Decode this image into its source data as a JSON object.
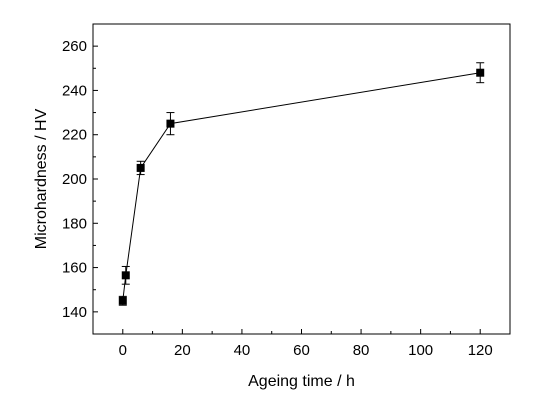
{
  "chart_data": {
    "type": "line",
    "xlabel": "Ageing time / h",
    "ylabel": "Microhardness / HV",
    "xlim": [
      -10,
      130
    ],
    "ylim": [
      130,
      270
    ],
    "xticks": [
      0,
      20,
      40,
      60,
      80,
      100,
      120
    ],
    "yticks": [
      140,
      160,
      180,
      200,
      220,
      240,
      260
    ],
    "grid": false,
    "series": [
      {
        "marker": "square",
        "color": "#000000",
        "points": [
          {
            "x": 0,
            "y": 145,
            "err": 2
          },
          {
            "x": 1,
            "y": 156.5,
            "err": 4
          },
          {
            "x": 6,
            "y": 205,
            "err": 3
          },
          {
            "x": 16,
            "y": 225,
            "err": 5
          },
          {
            "x": 120,
            "y": 248,
            "err": 4.5
          }
        ]
      }
    ]
  }
}
